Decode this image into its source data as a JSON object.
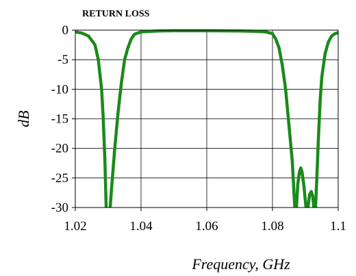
{
  "chart_data": {
    "type": "line",
    "title": "RETURN LOSS",
    "xlabel": "Frequency, GHz",
    "ylabel": "dB",
    "xlim": [
      1.02,
      1.1
    ],
    "ylim": [
      -30,
      0
    ],
    "xticks": [
      "1.02",
      "1.04",
      "1.06",
      "1.08",
      "1.1"
    ],
    "yticks": [
      "0",
      "-5",
      "-10",
      "-15",
      "-20",
      "-25",
      "-30"
    ],
    "grid": true,
    "legend": "none",
    "series": [
      {
        "color": "#1a8a1a",
        "points": [
          [
            1.02,
            -0.3
          ],
          [
            1.022,
            -0.5
          ],
          [
            1.024,
            -1.0
          ],
          [
            1.026,
            -2.5
          ],
          [
            1.027,
            -5.0
          ],
          [
            1.028,
            -10.0
          ],
          [
            1.0285,
            -15.0
          ],
          [
            1.029,
            -22.0
          ],
          [
            1.0294,
            -30.0
          ],
          null,
          [
            1.0306,
            -30.0
          ],
          [
            1.031,
            -27.0
          ],
          [
            1.032,
            -20.0
          ],
          [
            1.033,
            -14.0
          ],
          [
            1.034,
            -9.0
          ],
          [
            1.035,
            -5.0
          ],
          [
            1.036,
            -3.0
          ],
          [
            1.037,
            -1.5
          ],
          [
            1.038,
            -0.7
          ],
          [
            1.04,
            -0.3
          ],
          [
            1.045,
            -0.15
          ],
          [
            1.05,
            -0.1
          ],
          [
            1.06,
            -0.1
          ],
          [
            1.07,
            -0.15
          ],
          [
            1.075,
            -0.2
          ],
          [
            1.078,
            -0.3
          ],
          [
            1.08,
            -0.6
          ],
          [
            1.081,
            -1.5
          ],
          [
            1.082,
            -3.0
          ],
          [
            1.083,
            -6.0
          ],
          [
            1.084,
            -10.0
          ],
          [
            1.085,
            -16.0
          ],
          [
            1.086,
            -22.0
          ],
          [
            1.0868,
            -30.0
          ],
          null,
          [
            1.0873,
            -30.0
          ],
          [
            1.0877,
            -26.0
          ],
          [
            1.0882,
            -24.0
          ],
          [
            1.0886,
            -23.3
          ],
          [
            1.089,
            -24.0
          ],
          [
            1.0895,
            -26.0
          ],
          [
            1.0902,
            -30.0
          ],
          null,
          [
            1.0908,
            -30.0
          ],
          [
            1.0913,
            -27.8
          ],
          [
            1.0918,
            -27.3
          ],
          [
            1.0922,
            -28.0
          ],
          [
            1.0926,
            -30.0
          ],
          null,
          [
            1.0931,
            -30.0
          ],
          [
            1.0935,
            -25.0
          ],
          [
            1.094,
            -18.0
          ],
          [
            1.0945,
            -12.0
          ],
          [
            1.095,
            -8.0
          ],
          [
            1.096,
            -4.0
          ],
          [
            1.097,
            -2.0
          ],
          [
            1.098,
            -1.0
          ],
          [
            1.099,
            -0.6
          ],
          [
            1.1,
            -0.4
          ]
        ]
      }
    ]
  }
}
